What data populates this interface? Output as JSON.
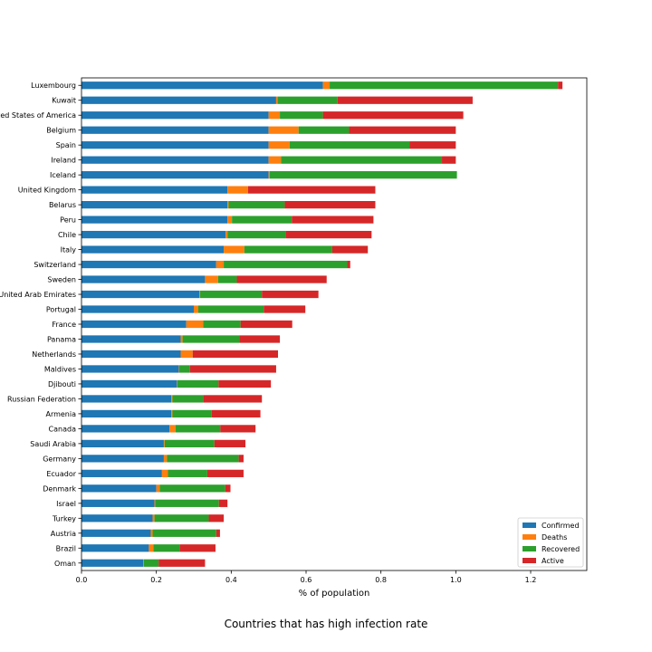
{
  "caption": "Countries that has high infection rate",
  "chart_data": {
    "type": "bar",
    "orientation": "horizontal",
    "stacked": true,
    "xlabel": "% of population",
    "ylabel": "",
    "xlim": [
      0,
      1.35
    ],
    "xticks": [
      "0.0",
      "0.2",
      "0.4",
      "0.6",
      "0.8",
      "1.0",
      "1.2"
    ],
    "grid": false,
    "legend": "lower right",
    "categories": [
      "Luxembourg",
      "Kuwait",
      "United States of America",
      "Belgium",
      "Spain",
      "Ireland",
      "Iceland",
      "United Kingdom",
      "Belarus",
      "Peru",
      "Chile",
      "Italy",
      "Switzerland",
      "Sweden",
      "United Arab Emirates",
      "Portugal",
      "France",
      "Panama",
      "Netherlands",
      "Maldives",
      "Djibouti",
      "Russian Federation",
      "Armenia",
      "Canada",
      "Saudi Arabia",
      "Germany",
      "Ecuador",
      "Denmark",
      "Israel",
      "Turkey",
      "Austria",
      "Brazil",
      "Oman"
    ],
    "series": [
      {
        "name": "Confirmed",
        "color": "#1f77b4",
        "values": [
          0.645,
          0.52,
          0.5,
          0.5,
          0.5,
          0.5,
          0.5,
          0.39,
          0.39,
          0.39,
          0.385,
          0.38,
          0.36,
          0.33,
          0.315,
          0.3,
          0.28,
          0.265,
          0.265,
          0.26,
          0.255,
          0.24,
          0.24,
          0.235,
          0.22,
          0.22,
          0.215,
          0.2,
          0.195,
          0.19,
          0.185,
          0.18,
          0.165
        ]
      },
      {
        "name": "Deaths",
        "color": "#ff7f0e",
        "values": [
          0.018,
          0.004,
          0.03,
          0.08,
          0.056,
          0.033,
          0.003,
          0.055,
          0.003,
          0.012,
          0.005,
          0.055,
          0.02,
          0.035,
          0.002,
          0.012,
          0.045,
          0.005,
          0.032,
          0.001,
          0.001,
          0.003,
          0.003,
          0.016,
          0.002,
          0.008,
          0.016,
          0.009,
          0.002,
          0.005,
          0.005,
          0.012,
          0.001
        ]
      },
      {
        "name": "Recovered",
        "color": "#2ca02c",
        "values": [
          0.61,
          0.16,
          0.115,
          0.135,
          0.32,
          0.43,
          0.5,
          0.0,
          0.15,
          0.16,
          0.155,
          0.235,
          0.33,
          0.05,
          0.165,
          0.175,
          0.1,
          0.152,
          0.0,
          0.029,
          0.11,
          0.082,
          0.105,
          0.12,
          0.133,
          0.192,
          0.105,
          0.175,
          0.17,
          0.145,
          0.17,
          0.07,
          0.04
        ]
      },
      {
        "name": "Active",
        "color": "#d62728",
        "values": [
          0.012,
          0.361,
          0.375,
          0.285,
          0.124,
          0.037,
          0.0,
          0.34,
          0.242,
          0.218,
          0.23,
          0.095,
          0.008,
          0.24,
          0.151,
          0.111,
          0.138,
          0.108,
          0.228,
          0.23,
          0.14,
          0.157,
          0.13,
          0.094,
          0.083,
          0.013,
          0.097,
          0.014,
          0.023,
          0.04,
          0.01,
          0.096,
          0.124
        ]
      }
    ]
  }
}
